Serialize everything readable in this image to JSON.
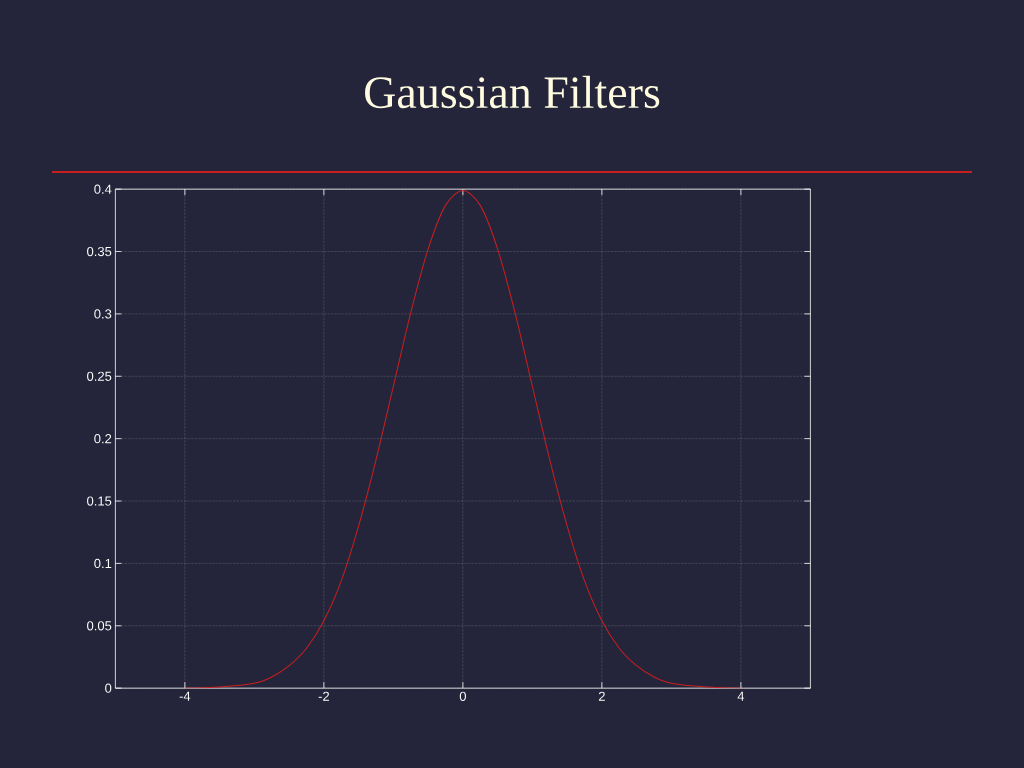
{
  "chart_data": {
    "type": "line",
    "title": "Gaussian Filters",
    "x": [
      -4,
      -3.5,
      -3,
      -2.75,
      -2.5,
      -2.25,
      -2,
      -1.75,
      -1.5,
      -1.25,
      -1,
      -0.75,
      -0.5,
      -0.25,
      0,
      0.25,
      0.5,
      0.75,
      1,
      1.25,
      1.5,
      1.75,
      2,
      2.25,
      2.5,
      2.75,
      3,
      3.5,
      4
    ],
    "series": [
      {
        "color": "#cc1f1f",
        "values": [
          0,
          0.001,
          0.004,
          0.009,
          0.018,
          0.032,
          0.054,
          0.086,
          0.13,
          0.183,
          0.242,
          0.301,
          0.352,
          0.387,
          0.399,
          0.387,
          0.352,
          0.301,
          0.242,
          0.183,
          0.13,
          0.086,
          0.054,
          0.032,
          0.018,
          0.009,
          0.004,
          0.001,
          0
        ]
      }
    ],
    "xlim": [
      -5,
      5
    ],
    "ylim": [
      0,
      0.4
    ],
    "xticks": [
      -4,
      -2,
      0,
      2,
      4
    ],
    "yticks": [
      0,
      0.05,
      0.1,
      0.15,
      0.2,
      0.25,
      0.3,
      0.35,
      0.4
    ],
    "grid": true,
    "marker": "none",
    "line_style": "solid"
  }
}
